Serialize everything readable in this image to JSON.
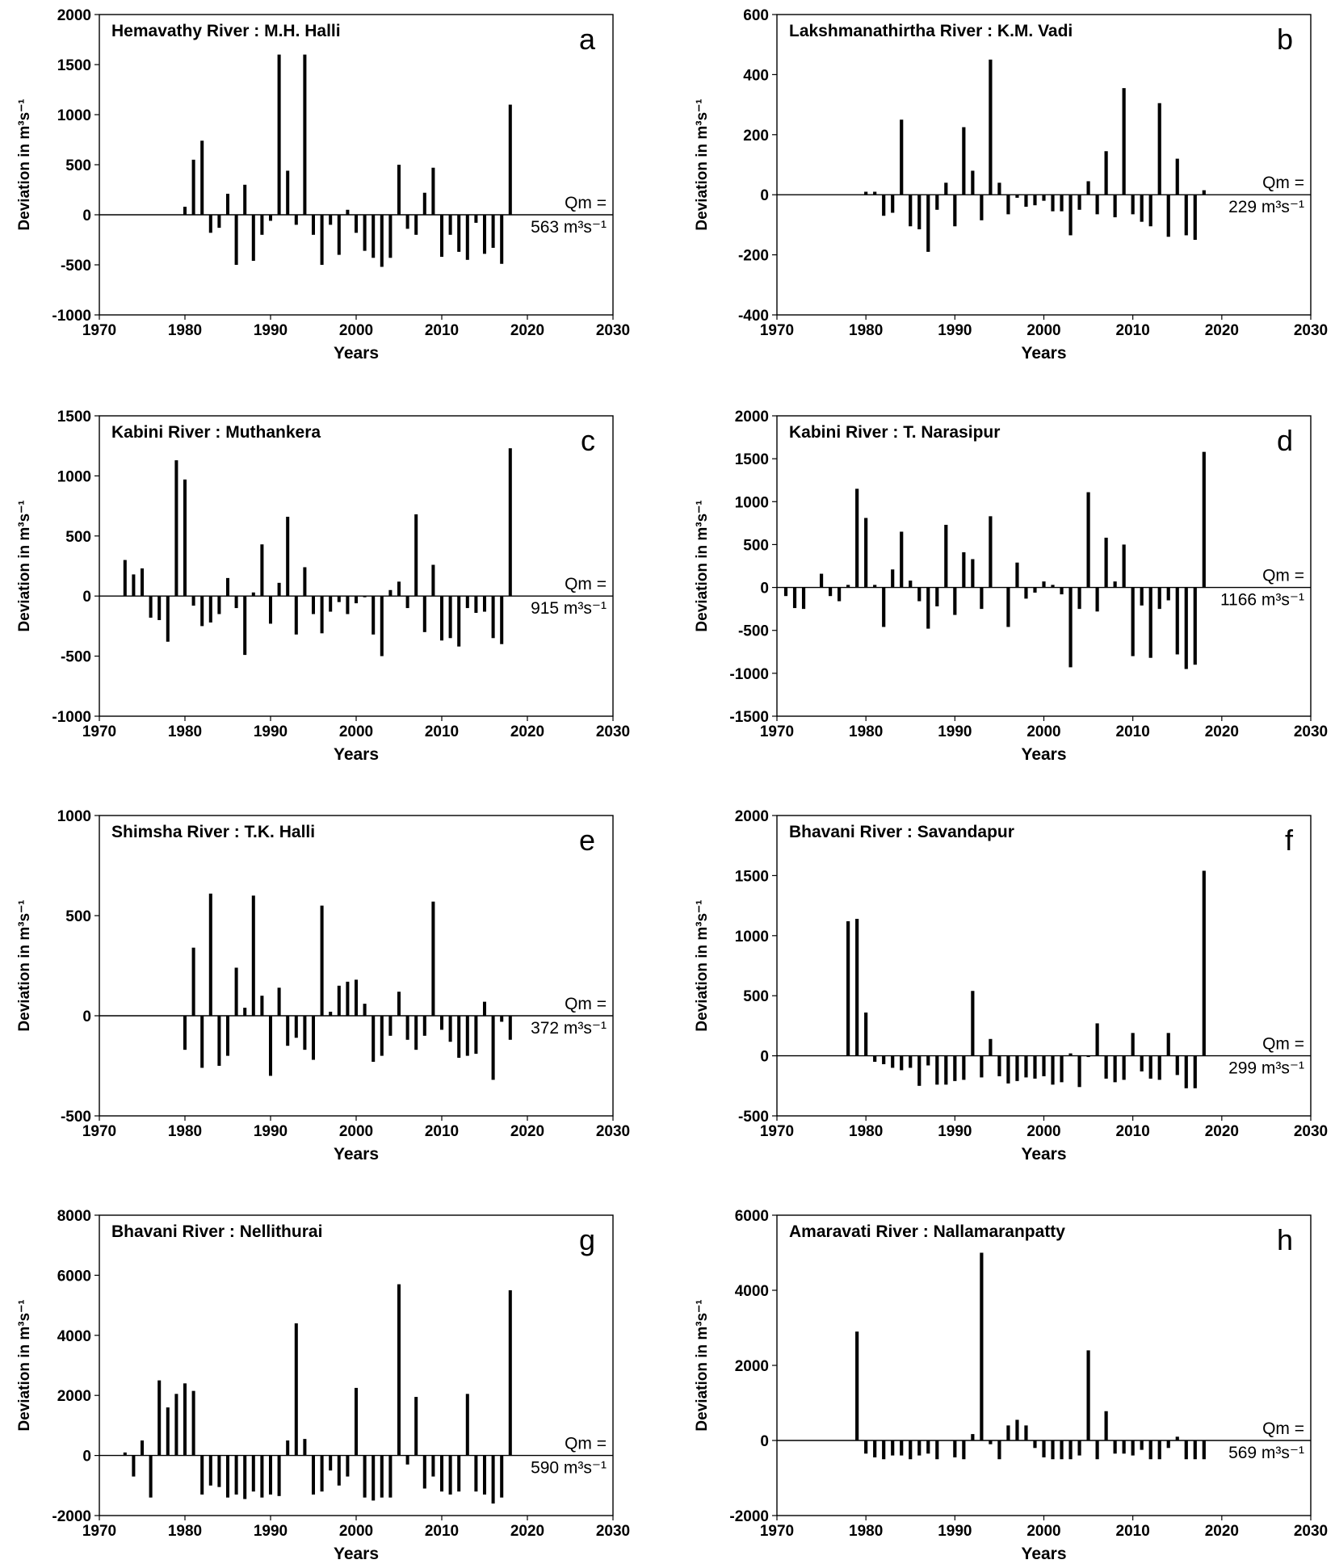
{
  "chart_data": [
    {
      "type": "bar",
      "letter": "a",
      "title": "Hemavathy River : M.H. Halli",
      "xlabel": "Years",
      "ylabel": "Deviation in m³s⁻¹",
      "xlim": [
        1970,
        2030
      ],
      "xticks": [
        1970,
        1980,
        1990,
        2000,
        2010,
        2020,
        2030
      ],
      "ylim": [
        -1000,
        2000
      ],
      "yticks": [
        -1000,
        -500,
        0,
        500,
        1000,
        1500,
        2000
      ],
      "qm_label": "Qm =",
      "qm_value": "563 m³s⁻¹",
      "x": [
        1980,
        1981,
        1982,
        1983,
        1984,
        1985,
        1986,
        1987,
        1988,
        1989,
        1990,
        1991,
        1992,
        1993,
        1994,
        1995,
        1996,
        1997,
        1998,
        1999,
        2000,
        2001,
        2002,
        2003,
        2004,
        2005,
        2006,
        2007,
        2008,
        2009,
        2010,
        2011,
        2012,
        2013,
        2014,
        2015,
        2016,
        2017,
        2018
      ],
      "values": [
        80,
        550,
        740,
        -180,
        -130,
        210,
        -500,
        300,
        -460,
        -200,
        -60,
        1600,
        440,
        -100,
        1600,
        -200,
        -500,
        -100,
        -400,
        50,
        -180,
        -360,
        -430,
        -520,
        -430,
        500,
        -140,
        -200,
        220,
        470,
        -420,
        -200,
        -370,
        -450,
        -80,
        -390,
        -330,
        -490,
        1100
      ]
    },
    {
      "type": "bar",
      "letter": "b",
      "title": "Lakshmanathirtha River : K.M. Vadi",
      "xlabel": "Years",
      "ylabel": "Deviation in m³s⁻¹",
      "xlim": [
        1970,
        2030
      ],
      "xticks": [
        1970,
        1980,
        1990,
        2000,
        2010,
        2020,
        2030
      ],
      "ylim": [
        -400,
        600
      ],
      "yticks": [
        -400,
        -200,
        0,
        200,
        400,
        600
      ],
      "qm_label": "Qm =",
      "qm_value": "229 m³s⁻¹",
      "x": [
        1980,
        1981,
        1982,
        1983,
        1984,
        1985,
        1986,
        1987,
        1988,
        1989,
        1990,
        1991,
        1992,
        1993,
        1994,
        1995,
        1996,
        1997,
        1998,
        1999,
        2000,
        2001,
        2002,
        2003,
        2004,
        2005,
        2006,
        2007,
        2008,
        2009,
        2010,
        2011,
        2012,
        2013,
        2014,
        2015,
        2016,
        2017,
        2018
      ],
      "values": [
        10,
        10,
        -70,
        -60,
        250,
        -105,
        -115,
        -190,
        -50,
        40,
        -105,
        225,
        80,
        -85,
        450,
        40,
        -65,
        -10,
        -40,
        -35,
        -20,
        -55,
        -55,
        -135,
        -50,
        45,
        -65,
        145,
        -75,
        355,
        -65,
        -90,
        -105,
        305,
        -140,
        120,
        -135,
        -150,
        15
      ]
    },
    {
      "type": "bar",
      "letter": "c",
      "title": "Kabini River : Muthankera",
      "xlabel": "Years",
      "ylabel": "Deviation in m³s⁻¹",
      "xlim": [
        1970,
        2030
      ],
      "xticks": [
        1970,
        1980,
        1990,
        2000,
        2010,
        2020,
        2030
      ],
      "ylim": [
        -1000,
        1500
      ],
      "yticks": [
        -1000,
        -500,
        0,
        500,
        1000,
        1500
      ],
      "qm_label": "Qm =",
      "qm_value": "915 m³s⁻¹",
      "x": [
        1973,
        1974,
        1975,
        1976,
        1977,
        1978,
        1979,
        1980,
        1981,
        1982,
        1983,
        1984,
        1985,
        1986,
        1987,
        1988,
        1989,
        1990,
        1991,
        1992,
        1993,
        1994,
        1995,
        1996,
        1997,
        1998,
        1999,
        2000,
        2001,
        2002,
        2003,
        2004,
        2005,
        2006,
        2007,
        2008,
        2009,
        2010,
        2011,
        2012,
        2013,
        2014,
        2015,
        2016,
        2017,
        2018
      ],
      "values": [
        300,
        180,
        230,
        -180,
        -200,
        -380,
        1130,
        970,
        -80,
        -250,
        -220,
        -150,
        150,
        -100,
        -490,
        30,
        430,
        -230,
        110,
        660,
        -320,
        240,
        -150,
        -310,
        -130,
        -50,
        -150,
        -60,
        -10,
        -320,
        -500,
        50,
        120,
        -100,
        680,
        -300,
        260,
        -370,
        -350,
        -420,
        -100,
        -140,
        -130,
        -350,
        -400,
        1230
      ]
    },
    {
      "type": "bar",
      "letter": "d",
      "title": "Kabini River : T. Narasipur",
      "xlabel": "Years",
      "ylabel": "Deviation in m³s⁻¹",
      "xlim": [
        1970,
        2030
      ],
      "xticks": [
        1970,
        1980,
        1990,
        2000,
        2010,
        2020,
        2030
      ],
      "ylim": [
        -1500,
        2000
      ],
      "yticks": [
        -1500,
        -1000,
        -500,
        0,
        500,
        1000,
        1500,
        2000
      ],
      "qm_label": "Qm =",
      "qm_value": "1166 m³s⁻¹",
      "x": [
        1971,
        1972,
        1973,
        1975,
        1976,
        1977,
        1978,
        1979,
        1980,
        1981,
        1982,
        1983,
        1984,
        1985,
        1986,
        1987,
        1988,
        1989,
        1990,
        1991,
        1992,
        1993,
        1994,
        1996,
        1997,
        1998,
        1999,
        2000,
        2001,
        2002,
        2003,
        2004,
        2005,
        2006,
        2007,
        2008,
        2009,
        2010,
        2011,
        2012,
        2013,
        2014,
        2015,
        2016,
        2017,
        2018
      ],
      "values": [
        -100,
        -240,
        -250,
        160,
        -100,
        -160,
        30,
        1150,
        810,
        30,
        -460,
        210,
        650,
        80,
        -160,
        -480,
        -220,
        730,
        -320,
        410,
        330,
        -250,
        830,
        -460,
        290,
        -130,
        -60,
        70,
        30,
        -80,
        -930,
        -250,
        1110,
        -280,
        580,
        70,
        500,
        -800,
        -210,
        -820,
        -250,
        -150,
        -780,
        -950,
        -900,
        1580
      ]
    },
    {
      "type": "bar",
      "letter": "e",
      "title": "Shimsha River : T.K. Halli",
      "xlabel": "Years",
      "ylabel": "Deviation in m³s⁻¹",
      "xlim": [
        1970,
        2030
      ],
      "xticks": [
        1970,
        1980,
        1990,
        2000,
        2010,
        2020,
        2030
      ],
      "ylim": [
        -500,
        1000
      ],
      "yticks": [
        -500,
        0,
        500,
        1000
      ],
      "qm_label": "Qm =",
      "qm_value": "372 m³s⁻¹",
      "x": [
        1980,
        1981,
        1982,
        1983,
        1984,
        1985,
        1986,
        1987,
        1988,
        1989,
        1990,
        1991,
        1992,
        1993,
        1994,
        1995,
        1996,
        1997,
        1998,
        1999,
        2000,
        2001,
        2002,
        2003,
        2004,
        2005,
        2006,
        2007,
        2008,
        2009,
        2010,
        2011,
        2012,
        2013,
        2014,
        2015,
        2016,
        2017,
        2018
      ],
      "values": [
        -170,
        340,
        -260,
        610,
        -250,
        -200,
        240,
        40,
        600,
        100,
        -300,
        140,
        -150,
        -110,
        -170,
        -220,
        550,
        20,
        150,
        170,
        180,
        60,
        -230,
        -200,
        -100,
        120,
        -120,
        -170,
        -100,
        570,
        -70,
        -130,
        -210,
        -200,
        -190,
        70,
        -320,
        -30,
        -120
      ]
    },
    {
      "type": "bar",
      "letter": "f",
      "title": "Bhavani River : Savandapur",
      "xlabel": "Years",
      "ylabel": "Deviation in m³s⁻¹",
      "xlim": [
        1970,
        2030
      ],
      "xticks": [
        1970,
        1980,
        1990,
        2000,
        2010,
        2020,
        2030
      ],
      "ylim": [
        -500,
        2000
      ],
      "yticks": [
        -500,
        0,
        500,
        1000,
        1500,
        2000
      ],
      "qm_label": "Qm =",
      "qm_value": "299 m³s⁻¹",
      "x": [
        1978,
        1979,
        1980,
        1981,
        1982,
        1983,
        1984,
        1985,
        1986,
        1987,
        1988,
        1989,
        1990,
        1991,
        1992,
        1993,
        1994,
        1995,
        1996,
        1997,
        1998,
        1999,
        2000,
        2001,
        2002,
        2003,
        2004,
        2005,
        2006,
        2007,
        2008,
        2009,
        2010,
        2011,
        2012,
        2013,
        2014,
        2015,
        2016,
        2017,
        2018
      ],
      "values": [
        1120,
        1140,
        360,
        -50,
        -70,
        -100,
        -120,
        -100,
        -250,
        -80,
        -240,
        -240,
        -210,
        -200,
        540,
        -180,
        140,
        -170,
        -230,
        -210,
        -180,
        -190,
        -170,
        -240,
        -220,
        20,
        -260,
        -10,
        270,
        -190,
        -220,
        -200,
        190,
        -130,
        -190,
        -200,
        190,
        -160,
        -270,
        -270,
        1540
      ]
    },
    {
      "type": "bar",
      "letter": "g",
      "title": "Bhavani River : Nellithurai",
      "xlabel": "Years",
      "ylabel": "Deviation in m³s⁻¹",
      "xlim": [
        1970,
        2030
      ],
      "xticks": [
        1970,
        1980,
        1990,
        2000,
        2010,
        2020,
        2030
      ],
      "ylim": [
        -2000,
        8000
      ],
      "yticks": [
        -2000,
        0,
        2000,
        4000,
        6000,
        8000
      ],
      "qm_label": "Qm =",
      "qm_value": "590 m³s⁻¹",
      "x": [
        1973,
        1974,
        1975,
        1976,
        1977,
        1978,
        1979,
        1980,
        1981,
        1982,
        1983,
        1984,
        1985,
        1986,
        1987,
        1988,
        1989,
        1990,
        1991,
        1992,
        1993,
        1994,
        1995,
        1996,
        1997,
        1998,
        1999,
        2000,
        2001,
        2002,
        2003,
        2004,
        2005,
        2006,
        2007,
        2008,
        2009,
        2010,
        2011,
        2012,
        2013,
        2014,
        2015,
        2016,
        2017,
        2018
      ],
      "values": [
        100,
        -700,
        500,
        -1400,
        2500,
        1600,
        2050,
        2400,
        2150,
        -1300,
        -1000,
        -1050,
        -1400,
        -1300,
        -1450,
        -1200,
        -1400,
        -1300,
        -1350,
        500,
        4400,
        550,
        -1300,
        -1200,
        -500,
        -1000,
        -700,
        2250,
        -1400,
        -1500,
        -1400,
        -1400,
        5700,
        -300,
        1950,
        -1100,
        -700,
        -1200,
        -1300,
        -1200,
        2050,
        -1200,
        -1300,
        -1600,
        -1400,
        5500
      ]
    },
    {
      "type": "bar",
      "letter": "h",
      "title": "Amaravati River : Nallamaranpatty",
      "xlabel": "Years",
      "ylabel": "Deviation in m³s⁻¹",
      "xlim": [
        1970,
        2030
      ],
      "xticks": [
        1970,
        1980,
        1990,
        2000,
        2010,
        2020,
        2030
      ],
      "ylim": [
        -2000,
        6000
      ],
      "yticks": [
        -2000,
        0,
        2000,
        4000,
        6000
      ],
      "qm_label": "Qm =",
      "qm_value": "569 m³s⁻¹",
      "x": [
        1979,
        1980,
        1981,
        1982,
        1983,
        1984,
        1985,
        1986,
        1987,
        1988,
        1990,
        1991,
        1992,
        1993,
        1994,
        1995,
        1996,
        1997,
        1998,
        1999,
        2000,
        2001,
        2002,
        2003,
        2004,
        2005,
        2006,
        2007,
        2008,
        2009,
        2010,
        2011,
        2012,
        2013,
        2014,
        2015,
        2016,
        2017,
        2018
      ],
      "values": [
        2900,
        -350,
        -450,
        -500,
        -400,
        -400,
        -500,
        -400,
        -350,
        -500,
        -450,
        -500,
        170,
        5000,
        -100,
        -500,
        400,
        550,
        400,
        -200,
        -450,
        -500,
        -500,
        -500,
        -400,
        2400,
        -500,
        780,
        -350,
        -350,
        -400,
        -250,
        -500,
        -500,
        -200,
        100,
        -500,
        -500,
        -500
      ]
    }
  ]
}
